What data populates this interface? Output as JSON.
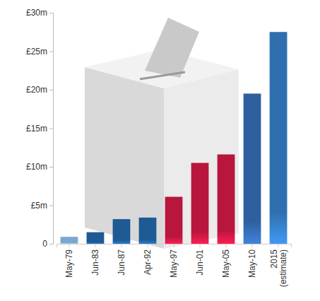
{
  "chart_data": {
    "type": "bar",
    "categories": [
      "May-79",
      "Jun-83",
      "Jun-87",
      "Apr-92",
      "May-97",
      "Jun-01",
      "May-05",
      "May-10",
      "2015 (estimate)"
    ],
    "values": [
      0.9,
      1.5,
      3.2,
      3.4,
      6.1,
      10.5,
      11.6,
      19.5,
      27.5
    ],
    "colors": [
      "#7ba7cf",
      "#1e5a94",
      "#1e5a94",
      "#1e5a94",
      "#b8163c",
      "#b8163c",
      "#b8163c",
      "#2f5f9e",
      "#2f6fb0"
    ],
    "ylim": [
      0,
      30
    ],
    "yticks": [
      0,
      {
        "value": 5,
        "label": "£5m"
      },
      {
        "value": 10,
        "label": "£10m"
      },
      {
        "value": 15,
        "label": "£15m"
      },
      {
        "value": 20,
        "label": "£20m"
      },
      {
        "value": 25,
        "label": "£25m"
      },
      {
        "value": 30,
        "label": "£30m"
      }
    ],
    "grid": false
  }
}
